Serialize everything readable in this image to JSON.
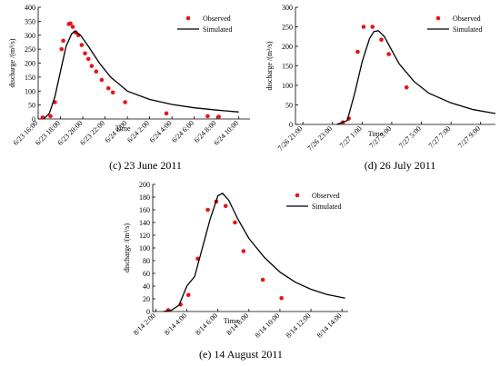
{
  "chart_data": [
    {
      "type": "line",
      "caption": "(c) 23 June 2011",
      "y_label": "discharge /(m³/s)",
      "x_label": "Time",
      "xlim": [
        16,
        35
      ],
      "xticks": [
        {
          "value": 16,
          "label": "6/23 16:00"
        },
        {
          "value": 18,
          "label": "6/23 18:00"
        },
        {
          "value": 20,
          "label": "6/23 20:00"
        },
        {
          "value": 22,
          "label": "6/23 22:00"
        },
        {
          "value": 24,
          "label": "6/24 0:00"
        },
        {
          "value": 26,
          "label": "6/24 2:00"
        },
        {
          "value": 28,
          "label": "6/24 4:00"
        },
        {
          "value": 30,
          "label": "6/24 6:00"
        },
        {
          "value": 32,
          "label": "6/24 8:00"
        },
        {
          "value": 34,
          "label": "6/24 10:00"
        }
      ],
      "ylim": [
        0,
        400
      ],
      "yticks": [
        0,
        50,
        100,
        150,
        200,
        250,
        300,
        350,
        400
      ],
      "legend": "upper right",
      "series": [
        {
          "name": "Observed",
          "kind": "scatter",
          "color": "#e8141b",
          "x": [
            16.4,
            17.1,
            17.5,
            18.1,
            18.25,
            18.75,
            18.9,
            19.1,
            19.35,
            19.6,
            19.9,
            20.2,
            20.5,
            20.8,
            21.2,
            21.7,
            22.3,
            22.7,
            23.8,
            27.5,
            31.2,
            32.2
          ],
          "values": [
            5,
            10,
            60,
            250,
            280,
            340,
            342,
            330,
            310,
            300,
            265,
            235,
            215,
            190,
            170,
            140,
            110,
            95,
            60,
            20,
            10,
            8
          ]
        },
        {
          "name": "Simulated",
          "kind": "line",
          "color": "#000000",
          "x": [
            16.5,
            17,
            17.5,
            18,
            18.5,
            19,
            19.3,
            19.8,
            20.5,
            21.5,
            22.5,
            24,
            26,
            28,
            30,
            32,
            34
          ],
          "values": [
            0,
            20,
            80,
            170,
            260,
            305,
            315,
            300,
            260,
            200,
            150,
            100,
            70,
            52,
            40,
            32,
            25
          ]
        }
      ]
    },
    {
      "type": "line",
      "caption": "(d) 26 July 2011",
      "y_label": "discharge /(m³/s)",
      "x_label": "Time",
      "xlim": [
        20.5,
        34
      ],
      "xticks": [
        {
          "value": 21,
          "label": "7/26 21:00"
        },
        {
          "value": 23,
          "label": "7/26 23:00"
        },
        {
          "value": 25,
          "label": "7/27 1:00"
        },
        {
          "value": 27,
          "label": "7/27 3:00"
        },
        {
          "value": 29,
          "label": "7/27 5:00"
        },
        {
          "value": 31,
          "label": "7/27 7:00"
        },
        {
          "value": 33,
          "label": "7/27 9:00"
        }
      ],
      "ylim": [
        0,
        300
      ],
      "yticks": [
        0,
        50,
        100,
        150,
        200,
        250,
        300
      ],
      "legend": "upper right",
      "series": [
        {
          "name": "Observed",
          "kind": "scatter",
          "color": "#e8141b",
          "x": [
            23.7,
            24.1,
            24.7,
            25.1,
            25.7,
            26.3,
            26.8,
            28.0
          ],
          "values": [
            5,
            15,
            186,
            250,
            250,
            217,
            180,
            95
          ]
        },
        {
          "name": "Simulated",
          "kind": "line",
          "color": "#000000",
          "x": [
            23.3,
            24,
            24.5,
            25,
            25.5,
            25.8,
            26.1,
            26.5,
            27,
            27.5,
            28.5,
            29.5,
            31,
            32.5,
            34
          ],
          "values": [
            0,
            10,
            80,
            160,
            220,
            238,
            240,
            225,
            190,
            155,
            110,
            80,
            55,
            38,
            28
          ]
        }
      ]
    },
    {
      "type": "line",
      "caption": "(e) 14 August 2011",
      "y_label": "discharge /(m³/s)",
      "x_label": "Time",
      "xlim": [
        1.8,
        14.4
      ],
      "xticks": [
        {
          "value": 2,
          "label": "8/14 2:00"
        },
        {
          "value": 4,
          "label": "8/14 4:00"
        },
        {
          "value": 6,
          "label": "8/14 6:00"
        },
        {
          "value": 8,
          "label": "8/14 8:00"
        },
        {
          "value": 10,
          "label": "8/14 10:00"
        },
        {
          "value": 12,
          "label": "8/14 12:00"
        },
        {
          "value": 14,
          "label": "8/14 14:00"
        }
      ],
      "ylim": [
        0,
        200
      ],
      "yticks": [
        0,
        20,
        40,
        60,
        80,
        100,
        120,
        140,
        160,
        180,
        200
      ],
      "legend": "upper right",
      "series": [
        {
          "name": "Observed",
          "kind": "scatter",
          "color": "#e8141b",
          "x": [
            2.8,
            3.6,
            4.1,
            4.7,
            5.35,
            5.9,
            6.5,
            7.1,
            7.65,
            8.9,
            10.1
          ],
          "values": [
            2,
            11,
            26,
            83,
            160,
            173,
            166,
            140,
            95,
            50,
            21
          ]
        },
        {
          "name": "Simulated",
          "kind": "line",
          "color": "#000000",
          "x": [
            2.5,
            3,
            3.5,
            4,
            4.5,
            5,
            5.5,
            6,
            6.3,
            6.7,
            7.3,
            8,
            9,
            10,
            11,
            12,
            13,
            14.2
          ],
          "values": [
            0,
            2,
            10,
            40,
            55,
            100,
            145,
            182,
            186,
            175,
            145,
            115,
            85,
            62,
            46,
            35,
            27,
            21
          ]
        }
      ]
    }
  ]
}
